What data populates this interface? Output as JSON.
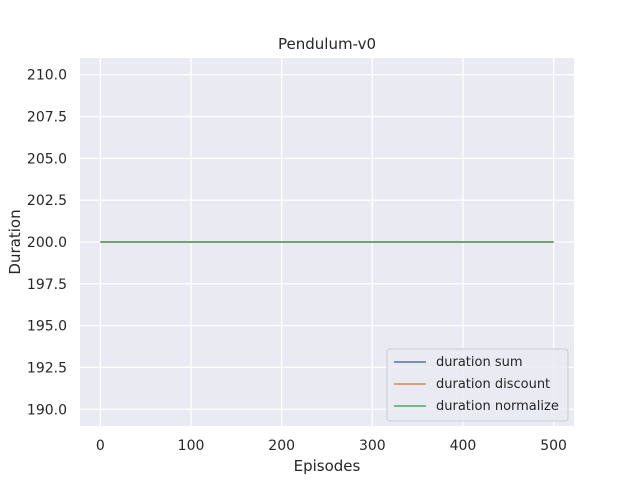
{
  "chart_data": {
    "type": "line",
    "title": "Pendulum-v0",
    "xlabel": "Episodes",
    "ylabel": "Duration",
    "xlim": [
      -22.5,
      522.5
    ],
    "ylim": [
      189,
      211
    ],
    "xticks": [
      "0",
      "100",
      "200",
      "300",
      "400",
      "500"
    ],
    "yticks": [
      "190.0",
      "192.5",
      "195.0",
      "197.5",
      "200.0",
      "202.5",
      "205.0",
      "207.5",
      "210.0"
    ],
    "grid": true,
    "legend_position": "lower-right",
    "series": [
      {
        "name": "duration sum",
        "color": "#4c72b0",
        "x": [
          0,
          500
        ],
        "y": [
          200,
          200
        ]
      },
      {
        "name": "duration discount",
        "color": "#dd8452",
        "x": [
          0,
          500
        ],
        "y": [
          200,
          200
        ]
      },
      {
        "name": "duration normalize",
        "color": "#55a868",
        "x": [
          0,
          500
        ],
        "y": [
          200,
          200
        ]
      }
    ]
  },
  "colors": {
    "plot_background": "#eaeaf2",
    "grid": "#ffffff",
    "text": "#262626"
  }
}
